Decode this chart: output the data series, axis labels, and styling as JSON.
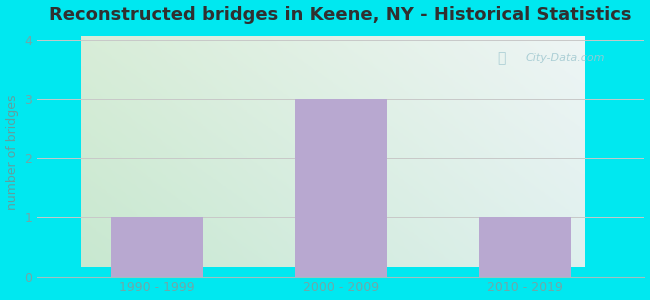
{
  "title": "Reconstructed bridges in Keene, NY - Historical Statistics",
  "categories": [
    "1990 - 1999",
    "2000 - 2009",
    "2010 - 2019"
  ],
  "values": [
    1,
    3,
    1
  ],
  "bar_color": "#b8a8d0",
  "ylabel": "number of bridges",
  "ylim": [
    0,
    4.2
  ],
  "yticks": [
    0,
    1,
    2,
    3,
    4
  ],
  "background_outer": "#00e8f0",
  "bg_top_left": "#d8edd8",
  "bg_top_right": "#eef5f5",
  "bg_bottom_left": "#c8e8d0",
  "bg_bottom_right": "#dff0ee",
  "grid_color": "#c8c8c8",
  "title_fontsize": 13,
  "title_color": "#303030",
  "axis_label_color": "#60a0a0",
  "tick_label_color": "#70a8a8",
  "watermark": "City-Data.com",
  "bar_width": 0.5
}
